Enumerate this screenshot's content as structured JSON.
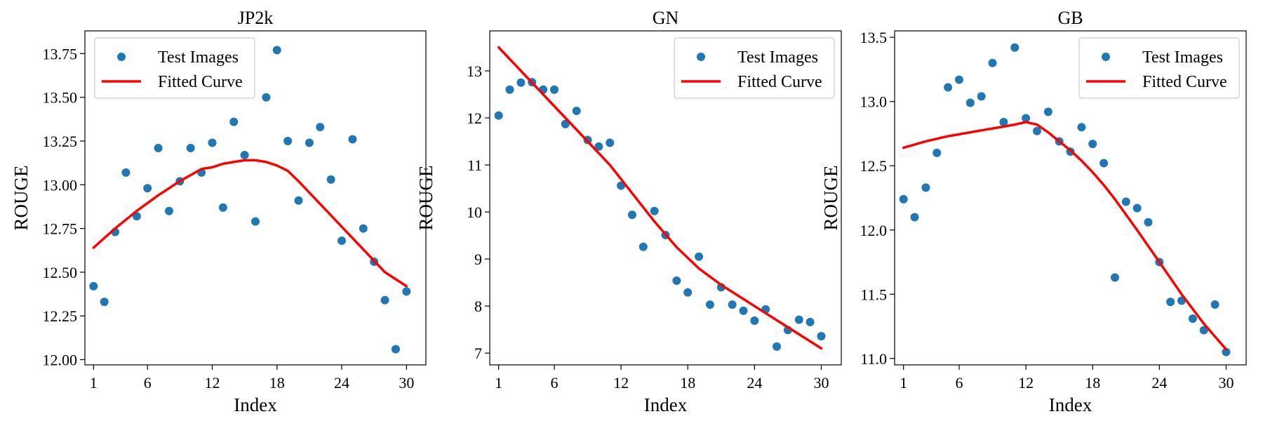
{
  "chart_data": [
    {
      "type": "scatter",
      "title": "JP2k",
      "xlabel": "Index",
      "ylabel": "ROUGE",
      "xlim": [
        0.2,
        31.8
      ],
      "ylim": [
        11.97,
        13.88
      ],
      "xticks": [
        1,
        6,
        12,
        18,
        24,
        30
      ],
      "yticks": [
        12.0,
        12.25,
        12.5,
        12.75,
        13.0,
        13.25,
        13.5,
        13.75
      ],
      "ytick_labels": [
        "12.00",
        "12.25",
        "12.50",
        "12.75",
        "13.00",
        "13.25",
        "13.50",
        "13.75"
      ],
      "legend": {
        "position": "top-left",
        "entries": [
          "Test Images",
          "Fitted Curve"
        ]
      },
      "series": [
        {
          "name": "Test Images",
          "kind": "scatter",
          "color": "#1f77b4",
          "x": [
            1,
            2,
            3,
            4,
            5,
            6,
            7,
            8,
            9,
            10,
            11,
            12,
            13,
            14,
            15,
            16,
            17,
            18,
            19,
            20,
            21,
            22,
            23,
            24,
            25,
            26,
            27,
            28,
            29,
            30
          ],
          "y": [
            12.42,
            12.33,
            12.73,
            13.07,
            12.82,
            12.98,
            13.21,
            12.85,
            13.02,
            13.21,
            13.07,
            13.24,
            12.87,
            13.36,
            13.17,
            12.79,
            13.5,
            13.77,
            13.25,
            12.91,
            13.24,
            13.33,
            13.03,
            12.68,
            13.26,
            12.75,
            12.56,
            12.34,
            12.06,
            12.39
          ]
        },
        {
          "name": "Fitted Curve",
          "kind": "line",
          "color": "#ff0000",
          "x": [
            1,
            3,
            5,
            7,
            9,
            11,
            12,
            13,
            14,
            15,
            16,
            17,
            18,
            19,
            20,
            22,
            24,
            26,
            28,
            30
          ],
          "y": [
            12.64,
            12.75,
            12.85,
            12.94,
            13.02,
            13.09,
            13.1,
            13.12,
            13.13,
            13.14,
            13.14,
            13.13,
            13.11,
            13.08,
            13.02,
            12.89,
            12.76,
            12.63,
            12.5,
            12.42
          ]
        }
      ]
    },
    {
      "type": "scatter",
      "title": "GN",
      "xlabel": "Index",
      "ylabel": "ROUGE",
      "xlim": [
        0.2,
        31.8
      ],
      "ylim": [
        6.75,
        13.85
      ],
      "xticks": [
        1,
        6,
        12,
        18,
        24,
        30
      ],
      "yticks": [
        7,
        8,
        9,
        10,
        11,
        12,
        13
      ],
      "ytick_labels": [
        "7",
        "8",
        "9",
        "10",
        "11",
        "12",
        "13"
      ],
      "legend": {
        "position": "top-right",
        "entries": [
          "Test Images",
          "Fitted Curve"
        ]
      },
      "series": [
        {
          "name": "Test Images",
          "kind": "scatter",
          "color": "#1f77b4",
          "x": [
            1,
            2,
            3,
            4,
            5,
            6,
            7,
            8,
            9,
            10,
            11,
            12,
            13,
            14,
            15,
            16,
            17,
            18,
            19,
            20,
            21,
            22,
            23,
            24,
            25,
            26,
            27,
            28,
            29,
            30
          ],
          "y": [
            12.05,
            12.6,
            12.75,
            12.76,
            12.6,
            12.6,
            11.87,
            12.15,
            11.53,
            11.39,
            11.47,
            10.56,
            9.94,
            9.26,
            10.02,
            9.51,
            8.54,
            8.29,
            9.05,
            8.03,
            8.4,
            8.03,
            7.9,
            7.69,
            7.93,
            7.14,
            7.49,
            7.71,
            7.66,
            7.36
          ]
        },
        {
          "name": "Fitted Curve",
          "kind": "line",
          "color": "#ff0000",
          "x": [
            1,
            3,
            5,
            7,
            9,
            11,
            12,
            13,
            15,
            17,
            19,
            21,
            23,
            25,
            27,
            30
          ],
          "y": [
            13.5,
            13.0,
            12.5,
            12.0,
            11.5,
            11.0,
            10.7,
            10.4,
            9.8,
            9.25,
            8.8,
            8.45,
            8.15,
            7.85,
            7.55,
            7.1
          ]
        }
      ]
    },
    {
      "type": "scatter",
      "title": "GB",
      "xlabel": "Index",
      "ylabel": "ROUGE",
      "xlim": [
        0.2,
        31.8
      ],
      "ylim": [
        10.95,
        13.55
      ],
      "xticks": [
        1,
        6,
        12,
        18,
        24,
        30
      ],
      "yticks": [
        11.0,
        11.5,
        12.0,
        12.5,
        13.0,
        13.5
      ],
      "ytick_labels": [
        "11.0",
        "11.5",
        "12.0",
        "12.5",
        "13.0",
        "13.5"
      ],
      "legend": {
        "position": "top-right",
        "entries": [
          "Test Images",
          "Fitted Curve"
        ]
      },
      "series": [
        {
          "name": "Test Images",
          "kind": "scatter",
          "color": "#1f77b4",
          "x": [
            1,
            2,
            3,
            4,
            5,
            6,
            7,
            8,
            9,
            10,
            11,
            12,
            13,
            14,
            15,
            16,
            17,
            18,
            19,
            20,
            21,
            22,
            23,
            24,
            25,
            26,
            27,
            28,
            29,
            30
          ],
          "y": [
            12.24,
            12.1,
            12.33,
            12.6,
            13.11,
            13.17,
            12.99,
            13.04,
            13.3,
            12.84,
            13.42,
            12.87,
            12.77,
            12.92,
            12.69,
            12.61,
            12.8,
            12.67,
            12.52,
            11.63,
            12.22,
            12.17,
            12.06,
            11.75,
            11.44,
            11.45,
            11.31,
            11.22,
            11.42,
            11.05
          ]
        },
        {
          "name": "Fitted Curve",
          "kind": "line",
          "color": "#ff0000",
          "x": [
            1,
            3,
            5,
            7,
            9,
            11,
            12,
            13,
            14,
            15,
            16,
            17,
            18,
            19,
            20,
            22,
            24,
            26,
            28,
            30
          ],
          "y": [
            12.64,
            12.69,
            12.73,
            12.76,
            12.79,
            12.82,
            12.84,
            12.82,
            12.76,
            12.69,
            12.62,
            12.54,
            12.45,
            12.35,
            12.24,
            12.0,
            11.75,
            11.5,
            11.27,
            11.07
          ]
        }
      ]
    }
  ]
}
